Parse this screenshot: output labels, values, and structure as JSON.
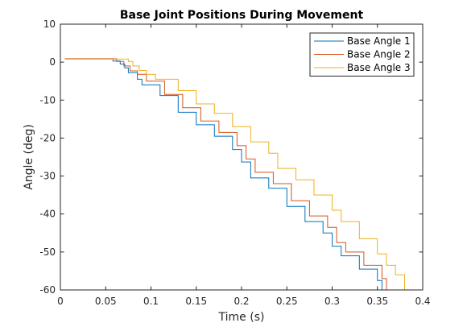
{
  "chart_data": {
    "type": "line",
    "title": "Base Joint Positions During Movement",
    "xlabel": "Time (s)",
    "ylabel": "Angle (deg)",
    "xlim": [
      0,
      0.4
    ],
    "ylim": [
      -60,
      10
    ],
    "xticks": [
      0,
      0.05,
      0.1,
      0.15,
      0.2,
      0.25,
      0.3,
      0.35,
      0.4
    ],
    "xtick_labels": [
      "0",
      "0.05",
      "0.1",
      "0.15",
      "0.2",
      "0.25",
      "0.3",
      "0.35",
      "0.4"
    ],
    "yticks": [
      10,
      0,
      -10,
      -20,
      -30,
      -40,
      -50,
      -60
    ],
    "ytick_labels": [
      "10",
      "0",
      "-10",
      "-20",
      "-30",
      "-40",
      "-50",
      "-60"
    ],
    "grid": false,
    "legend_position": "top-right",
    "series": [
      {
        "name": "Base Angle 1",
        "color": "#0072BD",
        "x": [
          0.005,
          0.05,
          0.058,
          0.066,
          0.071,
          0.075,
          0.085,
          0.09,
          0.1,
          0.11,
          0.12,
          0.13,
          0.14,
          0.15,
          0.16,
          0.17,
          0.18,
          0.19,
          0.2,
          0.21,
          0.22,
          0.23,
          0.24,
          0.25,
          0.26,
          0.27,
          0.28,
          0.29,
          0.3,
          0.31,
          0.32,
          0.33,
          0.34,
          0.35,
          0.355
        ],
        "y": [
          0.8,
          0.8,
          0.3,
          -0.5,
          -1.5,
          -2.8,
          -4.5,
          -6.0,
          -6.0,
          -8.8,
          -8.8,
          -13.2,
          -13.2,
          -16.5,
          -16.5,
          -19.5,
          -19.5,
          -23.0,
          -26.3,
          -30.5,
          -30.5,
          -33.2,
          -33.2,
          -38.0,
          -38.0,
          -42.0,
          -42.0,
          -45.0,
          -48.5,
          -51.0,
          -51.0,
          -54.5,
          -54.5,
          -57.5,
          -60.0
        ]
      },
      {
        "name": "Base Angle 2",
        "color": "#D95319",
        "x": [
          0.005,
          0.055,
          0.062,
          0.07,
          0.077,
          0.085,
          0.095,
          0.105,
          0.115,
          0.125,
          0.135,
          0.145,
          0.155,
          0.165,
          0.175,
          0.185,
          0.195,
          0.205,
          0.215,
          0.225,
          0.235,
          0.245,
          0.255,
          0.265,
          0.275,
          0.285,
          0.295,
          0.305,
          0.315,
          0.325,
          0.335,
          0.345,
          0.355,
          0.36
        ],
        "y": [
          0.9,
          0.9,
          0.2,
          -1.0,
          -2.3,
          -3.2,
          -5.0,
          -5.0,
          -8.5,
          -8.5,
          -12.0,
          -12.0,
          -15.5,
          -15.5,
          -18.5,
          -18.5,
          -22.0,
          -25.5,
          -29.0,
          -29.0,
          -32.0,
          -32.0,
          -36.5,
          -36.5,
          -40.5,
          -40.5,
          -43.5,
          -47.5,
          -50.0,
          -50.0,
          -53.5,
          -53.5,
          -57.0,
          -60.0
        ]
      },
      {
        "name": "Base Angle 3",
        "color": "#EDB120",
        "x": [
          0.005,
          0.065,
          0.075,
          0.08,
          0.087,
          0.095,
          0.105,
          0.12,
          0.13,
          0.14,
          0.15,
          0.16,
          0.17,
          0.18,
          0.19,
          0.2,
          0.21,
          0.22,
          0.23,
          0.24,
          0.25,
          0.26,
          0.27,
          0.28,
          0.29,
          0.3,
          0.31,
          0.32,
          0.33,
          0.34,
          0.35,
          0.36,
          0.37,
          0.38
        ],
        "y": [
          0.8,
          0.8,
          0.2,
          -1.0,
          -2.2,
          -3.2,
          -4.5,
          -4.5,
          -7.5,
          -7.5,
          -11.0,
          -11.0,
          -13.5,
          -13.5,
          -17.0,
          -17.0,
          -21.0,
          -21.0,
          -24.0,
          -28.0,
          -28.0,
          -31.0,
          -31.0,
          -35.0,
          -35.0,
          -39.0,
          -42.0,
          -42.0,
          -46.5,
          -46.5,
          -50.5,
          -53.5,
          -56.0,
          -60.0
        ]
      }
    ]
  }
}
